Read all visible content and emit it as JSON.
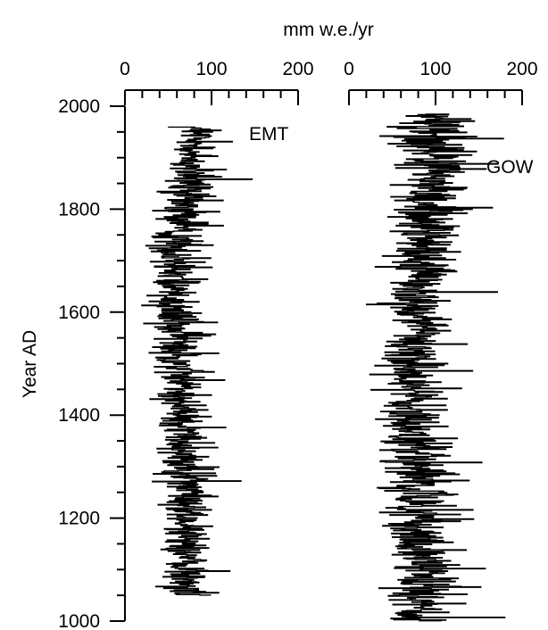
{
  "chart_data": [
    {
      "type": "line",
      "name": "EMT",
      "series_label": "EMT",
      "xlabel": "mm w.e./yr",
      "ylabel": "Year AD",
      "xlim": [
        0,
        200
      ],
      "ylim": [
        1000,
        2000
      ],
      "x_ticks": [
        "0",
        "100",
        "200"
      ],
      "y_ticks": [
        "1000",
        "1200",
        "1400",
        "1600",
        "1800",
        "2000"
      ],
      "year_range": [
        1050,
        1960
      ],
      "mean_profile": [
        {
          "year": 1050,
          "value": 75,
          "spread": 28
        },
        {
          "year": 1150,
          "value": 68,
          "spread": 22
        },
        {
          "year": 1250,
          "value": 72,
          "spread": 28
        },
        {
          "year": 1350,
          "value": 70,
          "spread": 26
        },
        {
          "year": 1450,
          "value": 65,
          "spread": 28
        },
        {
          "year": 1550,
          "value": 62,
          "spread": 28
        },
        {
          "year": 1650,
          "value": 58,
          "spread": 30
        },
        {
          "year": 1750,
          "value": 62,
          "spread": 30
        },
        {
          "year": 1850,
          "value": 72,
          "spread": 32
        },
        {
          "year": 1960,
          "value": 80,
          "spread": 28
        }
      ],
      "max_value": 155
    },
    {
      "type": "line",
      "name": "GOW",
      "series_label": "GOW",
      "xlabel": "mm w.e./yr",
      "xlim": [
        0,
        200
      ],
      "ylim": [
        1000,
        2000
      ],
      "x_ticks": [
        "0",
        "100",
        "200"
      ],
      "year_range": [
        1000,
        1985
      ],
      "mean_profile": [
        {
          "year": 1000,
          "value": 85,
          "spread": 38
        },
        {
          "year": 1100,
          "value": 85,
          "spread": 38
        },
        {
          "year": 1200,
          "value": 80,
          "spread": 36
        },
        {
          "year": 1300,
          "value": 72,
          "spread": 34
        },
        {
          "year": 1400,
          "value": 70,
          "spread": 34
        },
        {
          "year": 1500,
          "value": 72,
          "spread": 34
        },
        {
          "year": 1600,
          "value": 78,
          "spread": 38
        },
        {
          "year": 1700,
          "value": 85,
          "spread": 40
        },
        {
          "year": 1800,
          "value": 88,
          "spread": 40
        },
        {
          "year": 1900,
          "value": 95,
          "spread": 42
        },
        {
          "year": 1985,
          "value": 95,
          "spread": 40
        }
      ],
      "max_value": 180
    }
  ]
}
